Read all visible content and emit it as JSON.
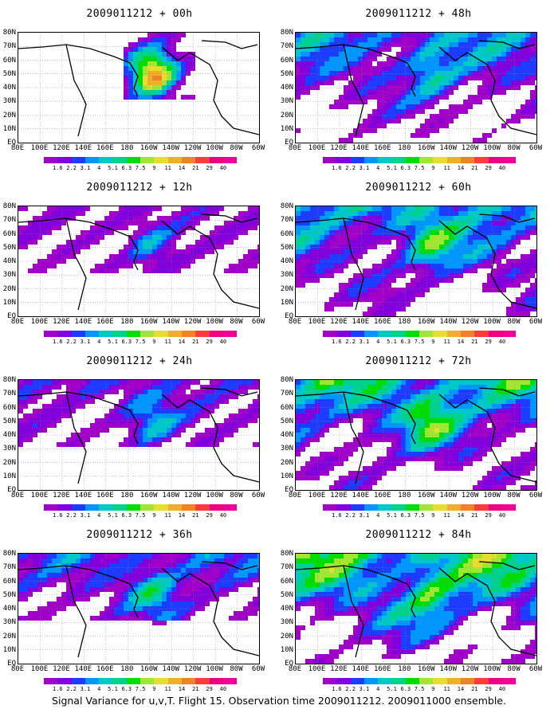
{
  "chart_data": {
    "type": "heatmap",
    "init_time": "2009011212",
    "panels": [
      {
        "title": "2009011212 + 00h",
        "lead_hours": 0
      },
      {
        "title": "2009011212 + 12h",
        "lead_hours": 12
      },
      {
        "title": "2009011212 + 24h",
        "lead_hours": 24
      },
      {
        "title": "2009011212 + 36h",
        "lead_hours": 36
      },
      {
        "title": "2009011212 + 48h",
        "lead_hours": 48
      },
      {
        "title": "2009011212 + 60h",
        "lead_hours": 60
      },
      {
        "title": "2009011212 + 72h",
        "lead_hours": 72
      },
      {
        "title": "2009011212 + 84h",
        "lead_hours": 84
      }
    ],
    "x_tick_labels": [
      "80E",
      "100E",
      "120E",
      "140E",
      "160E",
      "180",
      "160W",
      "140W",
      "120W",
      "100W",
      "80W",
      "60W"
    ],
    "y_tick_labels": [
      "80N",
      "70N",
      "60N",
      "50N",
      "40N",
      "30N",
      "20N",
      "10N",
      "EQ"
    ],
    "colorbar": {
      "levels": [
        "1.6",
        "2.2",
        "3.1",
        "4",
        "5.1",
        "6.3",
        "7.5",
        "9",
        "11",
        "14",
        "21",
        "29",
        "40"
      ],
      "colors": [
        "#a000c8",
        "#8200dc",
        "#1e3cff",
        "#0096ff",
        "#00c8c8",
        "#00d28c",
        "#00dc00",
        "#a0e632",
        "#e6dc32",
        "#f0af28",
        "#f08228",
        "#fa3c3c",
        "#f00082",
        "#f0009a"
      ]
    },
    "footer": "Signal Variance for u,v,T. Flight 15. Observation time 2009011212. 2009011000 ensemble."
  }
}
